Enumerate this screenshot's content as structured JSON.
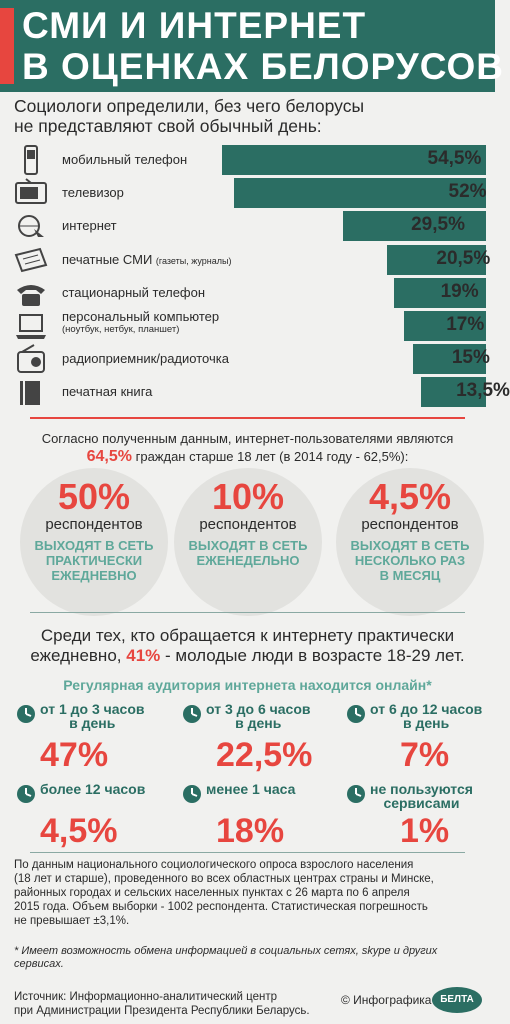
{
  "header": {
    "title_line1": "СМИ И ИНТЕРНЕТ",
    "title_line2": "В ОЦЕНКАХ  БЕЛОРУСОВ"
  },
  "intro": {
    "line1": "Социологи определили, без чего белорусы",
    "line2": "не представляют свой обычный день:"
  },
  "chart_data": {
    "type": "bar",
    "categories": [
      "мобильный телефон",
      "телевизор",
      "интернет",
      "печатные СМИ",
      "стационарный телефон",
      "персональный компьютер",
      "радиоприемник/радиоточка",
      "печатная книга"
    ],
    "category_notes": {
      "печатные СМИ": "(газеты, журналы)",
      "персональный компьютер": "(ноутбук, нетбук, планшет)"
    },
    "values": [
      54.5,
      52,
      29.5,
      20.5,
      19,
      17,
      15,
      13.5
    ],
    "value_labels": [
      "54,5%",
      "52%",
      "29,5%",
      "20,5%",
      "19%",
      "17%",
      "15%",
      "13,5%"
    ],
    "icons": [
      "mobile-phone-icon",
      "tv-icon",
      "internet-icon",
      "newspaper-icon",
      "landline-phone-icon",
      "laptop-icon",
      "radio-icon",
      "book-icon"
    ]
  },
  "users": {
    "line1": "Согласно полученным данным, интернет-пользователями являются",
    "pct": "64,5%",
    "line2": "граждан старше 18 лет (в 2014 году - 62,5%):"
  },
  "frequency": [
    {
      "pct": "50%",
      "resp": "респондентов",
      "desc1": "ВЫХОДЯТ В СЕТЬ",
      "desc2": "ПРАКТИЧЕСКИ",
      "desc3": "ЕЖЕДНЕВНО"
    },
    {
      "pct": "10%",
      "resp": "респондентов",
      "desc1": "ВЫХОДЯТ В СЕТЬ",
      "desc2": "ЕЖЕНЕДЕЛЬНО",
      "desc3": ""
    },
    {
      "pct": "4,5%",
      "resp": "респондентов",
      "desc1": "ВЫХОДЯТ В СЕТЬ",
      "desc2": "НЕСКОЛЬКО РАЗ",
      "desc3": "В МЕСЯЦ"
    }
  ],
  "daily": {
    "line1": "Среди тех, кто обращается к интернету практически",
    "line2_pre": "ежедневно,",
    "pct": "41%",
    "line2_post": "- молодые люди в возрасте 18-29 лет."
  },
  "online": {
    "title": "Регулярная аудитория интернета находится онлайн*",
    "items": [
      {
        "l1": "от 1 до 3 часов",
        "l2": "в день",
        "val": "47%"
      },
      {
        "l1": "от 3 до 6 часов",
        "l2": "в день",
        "val": "22,5%"
      },
      {
        "l1": "от 6 до 12 часов",
        "l2": "в день",
        "val": "7%"
      },
      {
        "l1": "более 12 часов",
        "l2": "",
        "val": "4,5%"
      },
      {
        "l1": "менее 1 часа",
        "l2": "",
        "val": "18%"
      },
      {
        "l1": "не пользуются",
        "l2": "сервисами",
        "val": "1%"
      }
    ]
  },
  "method": {
    "l1": "По данным национального социологического опроса взрослого населения",
    "l2": "(18 лет и старше), проведенного во всех областных центрах страны и Минске,",
    "l3": "районных городах и сельских населенных пунктах с 26 марта по 6 апреля",
    "l4": "2015 года. Объем выборки - 1002 респондента. Статистическая погрешность",
    "l5": "не превышает ±3,1%."
  },
  "footnote": {
    "l1": "* Имеет возможность обмена информацией в социальных сетях, skype и других",
    "l2": "сервисах."
  },
  "source": {
    "l1": "Источник: Информационно-аналитический центр",
    "l2": "при Администрации Президента Республики Беларусь.",
    "credit": "© Инфографика",
    "logo": "БЕЛТА"
  },
  "colors": {
    "green": "#2b6e63",
    "light_green": "#5fa89a",
    "red": "#e7463f",
    "bg": "#f1f1ef",
    "circle": "#e2e2df"
  }
}
